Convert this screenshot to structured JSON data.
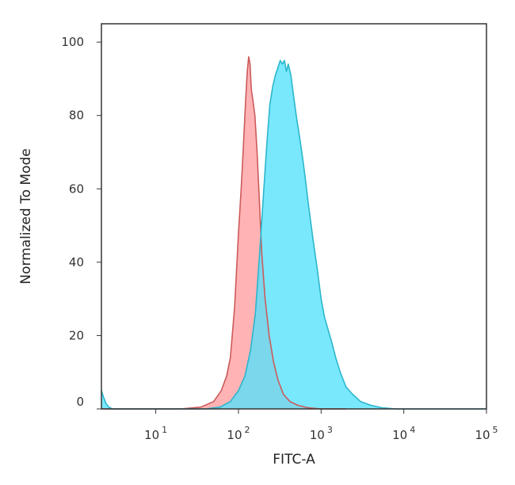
{
  "chart_data": {
    "type": "area",
    "xlabel": "FITC-A",
    "ylabel": "Normalized To Mode",
    "x_scale": "log",
    "xlim": [
      2.2,
      100000
    ],
    "ylim": [
      0,
      105
    ],
    "y_ticks": [
      0,
      20,
      40,
      60,
      80,
      100
    ],
    "x_ticks": [
      {
        "value": 10,
        "base": "10",
        "exp": "1"
      },
      {
        "value": 100,
        "base": "10",
        "exp": "2"
      },
      {
        "value": 1000,
        "base": "10",
        "exp": "3"
      },
      {
        "value": 10000,
        "base": "10",
        "exp": "4"
      },
      {
        "value": 100000,
        "base": "10",
        "exp": "5"
      }
    ],
    "grid": false,
    "series": [
      {
        "fill": "#ff9ea0",
        "stroke": "#cc5a5a",
        "x": [
          2.2,
          20,
          35,
          50,
          62,
          72,
          80,
          90,
          100,
          108,
          115,
          122,
          128,
          133,
          138,
          143,
          150,
          158,
          168,
          178,
          192,
          210,
          235,
          265,
          300,
          350,
          420,
          520,
          700,
          1000,
          2000
        ],
        "y": [
          0,
          0,
          0.5,
          2,
          5,
          9,
          14,
          28,
          48,
          60,
          72,
          84,
          92,
          96,
          94,
          87,
          84,
          80,
          70,
          58,
          42,
          30,
          20,
          13,
          8,
          4,
          2,
          1,
          0.3,
          0,
          0
        ]
      },
      {
        "fill": "#55e1fb",
        "stroke": "#2bb6cc",
        "x": [
          2.2,
          2.35,
          2.5,
          2.7,
          3.0,
          10,
          40,
          60,
          80,
          100,
          120,
          140,
          160,
          180,
          200,
          220,
          240,
          260,
          280,
          300,
          320,
          340,
          360,
          380,
          400,
          430,
          460,
          500,
          550,
          600,
          650,
          700,
          800,
          900,
          1000,
          1100,
          1200,
          1350,
          1500,
          1700,
          2000,
          2400,
          3000,
          4000,
          5500,
          8000,
          12000,
          100000
        ],
        "y": [
          5,
          3,
          1.5,
          0.5,
          0,
          0,
          0,
          0.5,
          2,
          5,
          9,
          16,
          26,
          42,
          58,
          72,
          83,
          88,
          91,
          93,
          95,
          94,
          95,
          92,
          94,
          91,
          86,
          80,
          74,
          68,
          62,
          56,
          46,
          38,
          30,
          25,
          22,
          18,
          14,
          10,
          6,
          4,
          2,
          1,
          0.3,
          0,
          0,
          0
        ]
      }
    ]
  }
}
